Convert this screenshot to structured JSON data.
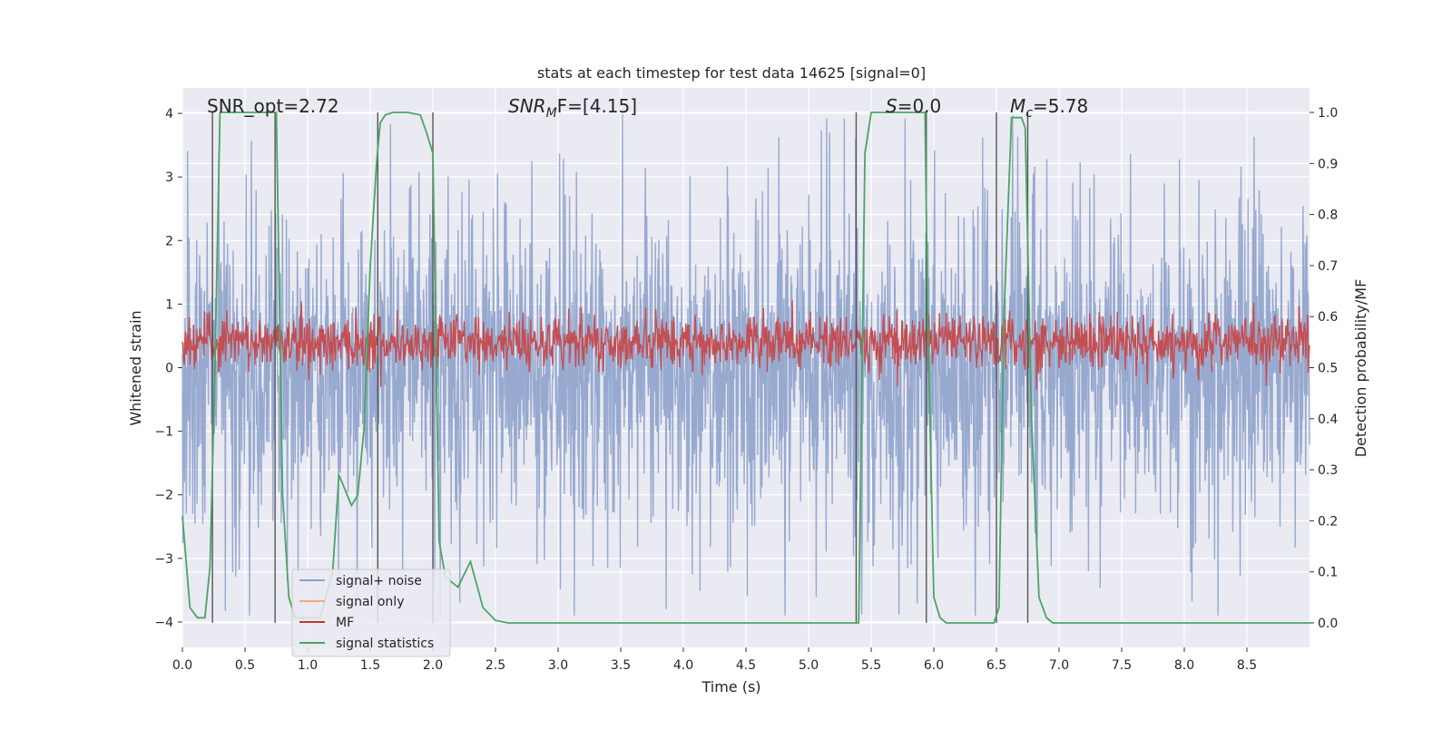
{
  "chart_data": {
    "type": "line",
    "title": "stats at each timestep for test data 14625 [signal=0]",
    "xlabel": "Time (s)",
    "ylabel_left": "Whitened strain",
    "ylabel_right": "Detection probability/MF",
    "xlim": [
      0.0,
      9.0
    ],
    "ylim_left": [
      -4.4,
      4.4
    ],
    "ylim_right": [
      -0.048,
      1.048
    ],
    "x_ticks": [
      0.0,
      0.5,
      1.0,
      1.5,
      2.0,
      2.5,
      3.0,
      3.5,
      4.0,
      4.5,
      5.0,
      5.5,
      6.0,
      6.5,
      7.0,
      7.5,
      8.0,
      8.5
    ],
    "x_tick_labels": [
      "0.0",
      "0.5",
      "1.0",
      "1.5",
      "2.0",
      "2.5",
      "3.0",
      "3.5",
      "4.0",
      "4.5",
      "5.0",
      "5.5",
      "6.0",
      "6.5",
      "7.0",
      "7.5",
      "8.0",
      "8.5"
    ],
    "y_left_ticks": [
      4,
      3,
      2,
      1,
      0,
      -1,
      -2,
      -3,
      -4
    ],
    "y_left_tick_labels": [
      "4",
      "3",
      "2",
      "1",
      "0",
      "−1",
      "−2",
      "−3",
      "−4"
    ],
    "y_right_ticks": [
      1.0,
      0.9,
      0.8,
      0.7,
      0.6,
      0.5,
      0.4,
      0.3,
      0.2,
      0.1,
      0.0
    ],
    "y_right_tick_labels": [
      "1.0",
      "0.9",
      "0.8",
      "0.7",
      "0.6",
      "0.5",
      "0.4",
      "0.3",
      "0.2",
      "0.1",
      "0.0"
    ],
    "annotations": {
      "snr_opt": "SNR_opt=2.72",
      "snr_mf_sym": "SNR",
      "snr_mf_sub": "M",
      "snr_mf_rest": "F=[4.15]",
      "s_sym": "S",
      "s_rest": "=0.0",
      "mc_sym": "M",
      "mc_sub": "c",
      "mc_rest": "=5.78"
    },
    "legend": {
      "position": "lower-left",
      "entries": [
        {
          "label": "signal+ noise",
          "color": "#8da0cb"
        },
        {
          "label": "signal only",
          "color": "#f4a582"
        },
        {
          "label": "MF",
          "color": "#c0392b"
        },
        {
          "label": "signal statistics",
          "color": "#4aa564"
        }
      ]
    },
    "series": [
      {
        "name": "signal+ noise",
        "kind": "noise",
        "color": "#97a9cf",
        "axis": "left",
        "envelope_typical": 2.0,
        "envelope_peak": 4.0
      },
      {
        "name": "MF",
        "kind": "noise",
        "color": "#c44e52",
        "axis": "right",
        "center": 0.55,
        "envelope_typical": 0.06,
        "envelope_peak": 0.1
      },
      {
        "name": "signal statistics",
        "color": "#4aa564",
        "axis": "right",
        "x": [
          0.0,
          0.06,
          0.12,
          0.18,
          0.22,
          0.26,
          0.3,
          0.75,
          0.8,
          0.85,
          0.9,
          1.0,
          1.1,
          1.2,
          1.25,
          1.3,
          1.35,
          1.4,
          1.45,
          1.5,
          1.55,
          1.58,
          1.62,
          1.68,
          1.75,
          1.8,
          1.9,
          1.95,
          2.0,
          2.05,
          2.1,
          2.2,
          2.3,
          2.4,
          2.5,
          2.6,
          5.4,
          5.45,
          5.5,
          5.93,
          5.95,
          6.0,
          6.05,
          6.1,
          6.48,
          6.52,
          6.56,
          6.62,
          6.7,
          6.73,
          6.78,
          6.84,
          6.9,
          6.95,
          7.05,
          9.0
        ],
        "values": [
          0.21,
          0.03,
          0.01,
          0.01,
          0.11,
          0.5,
          1.0,
          1.0,
          0.25,
          0.05,
          0.01,
          0.01,
          0.01,
          0.1,
          0.29,
          0.26,
          0.23,
          0.25,
          0.38,
          0.7,
          0.9,
          0.98,
          0.995,
          1.0,
          1.0,
          1.0,
          0.995,
          0.96,
          0.92,
          0.16,
          0.09,
          0.07,
          0.12,
          0.03,
          0.005,
          0.0,
          0.0,
          0.92,
          1.0,
          1.0,
          0.62,
          0.05,
          0.01,
          0.0,
          0.0,
          0.03,
          0.6,
          0.99,
          0.99,
          0.97,
          0.4,
          0.05,
          0.01,
          0.0,
          0.0,
          0.0
        ]
      }
    ],
    "vertical_lines": [
      0.24,
      0.74,
      1.56,
      2.0,
      5.38,
      5.94,
      6.5,
      6.75
    ]
  }
}
